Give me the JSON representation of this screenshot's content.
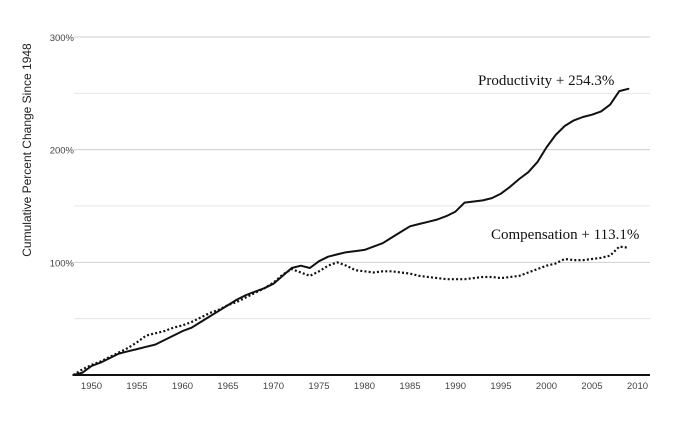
{
  "chart_data": {
    "type": "line",
    "title": "",
    "xlabel": "",
    "ylabel": "Cumulative Percent Change Since 1948",
    "xlim": [
      1948,
      2010
    ],
    "ylim": [
      0,
      300
    ],
    "grid": true,
    "x_ticks": [
      1950,
      1955,
      1960,
      1965,
      1970,
      1975,
      1980,
      1985,
      1990,
      1995,
      2000,
      2005,
      2010
    ],
    "x_tick_labels": [
      "1950",
      "1955",
      "1960",
      "1965",
      "1970",
      "1975",
      "1980",
      "1985",
      "1990",
      "1995",
      "2000",
      "2005",
      "2010"
    ],
    "y_ticks": [
      100,
      200,
      300
    ],
    "y_tick_labels": [
      "100%",
      "200%",
      "300%"
    ],
    "series": [
      {
        "name": "Productivity",
        "label": "Productivity  + 254.3%",
        "style": "solid",
        "x": [
          1948,
          1949,
          1950,
          1951,
          1952,
          1953,
          1954,
          1955,
          1956,
          1957,
          1958,
          1959,
          1960,
          1961,
          1962,
          1963,
          1964,
          1965,
          1966,
          1967,
          1968,
          1969,
          1970,
          1971,
          1972,
          1973,
          1974,
          1975,
          1976,
          1977,
          1978,
          1979,
          1980,
          1981,
          1982,
          1983,
          1984,
          1985,
          1986,
          1987,
          1988,
          1989,
          1990,
          1991,
          1992,
          1993,
          1994,
          1995,
          1996,
          1997,
          1998,
          1999,
          2000,
          2001,
          2002,
          2003,
          2004,
          2005,
          2006,
          2007,
          2008,
          2009
        ],
        "values": [
          0,
          2,
          8,
          11,
          15,
          19,
          21,
          23,
          25,
          27,
          31,
          35,
          39,
          42,
          47,
          52,
          57,
          62,
          67,
          71,
          74,
          77,
          81,
          88,
          95,
          97,
          95,
          101,
          105,
          107,
          109,
          110,
          111,
          114,
          117,
          122,
          127,
          132,
          134,
          136,
          138,
          141,
          145,
          153,
          154,
          155,
          157,
          161,
          167,
          174,
          180,
          189,
          202,
          213,
          221,
          226,
          229,
          231,
          234,
          240,
          252,
          254
        ]
      },
      {
        "name": "Compensation",
        "label": "Compensation  + 113.1%",
        "style": "dotted",
        "x": [
          1948,
          1949,
          1950,
          1951,
          1952,
          1953,
          1954,
          1955,
          1956,
          1957,
          1958,
          1959,
          1960,
          1961,
          1962,
          1963,
          1964,
          1965,
          1966,
          1967,
          1968,
          1969,
          1970,
          1971,
          1972,
          1973,
          1974,
          1975,
          1976,
          1977,
          1978,
          1979,
          1980,
          1981,
          1982,
          1983,
          1984,
          1985,
          1986,
          1987,
          1988,
          1989,
          1990,
          1991,
          1992,
          1993,
          1994,
          1995,
          1996,
          1997,
          1998,
          1999,
          2000,
          2001,
          2002,
          2003,
          2004,
          2005,
          2006,
          2007,
          2008,
          2009
        ],
        "values": [
          0,
          5,
          9,
          12,
          16,
          20,
          24,
          29,
          35,
          37,
          39,
          42,
          44,
          47,
          51,
          55,
          58,
          62,
          65,
          69,
          73,
          77,
          82,
          89,
          94,
          91,
          88,
          92,
          97,
          100,
          97,
          93,
          92,
          91,
          92,
          92,
          91,
          90,
          88,
          87,
          86,
          85,
          85,
          85,
          86,
          87,
          87,
          86,
          87,
          88,
          91,
          94,
          97,
          99,
          103,
          102,
          102,
          103,
          104,
          106,
          114,
          113
        ]
      }
    ]
  }
}
